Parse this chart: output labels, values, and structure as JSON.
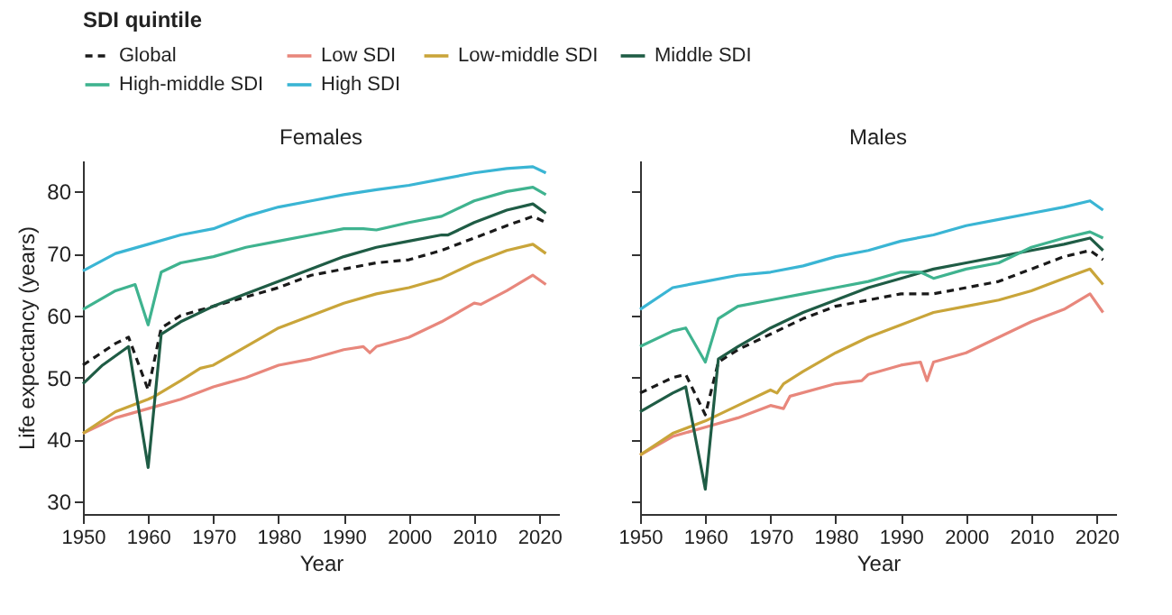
{
  "chart_data": [
    {
      "type": "line",
      "title": "Females",
      "xlabel": "Year",
      "ylabel": "Life expectancy (years)",
      "legend_title": "SDI quintile",
      "legend": "top",
      "xlim": [
        1950,
        2023
      ],
      "xticks": [
        1950,
        1960,
        1970,
        1980,
        1990,
        2000,
        2010,
        2020
      ],
      "ylim": [
        28,
        85
      ],
      "yticks": [
        30,
        40,
        50,
        60,
        70,
        80
      ],
      "series": [
        {
          "name": "Global",
          "color": "#1a1a1a",
          "line_style": "dashed",
          "x": [
            1950,
            1955,
            1957,
            1960,
            1962,
            1965,
            1970,
            1975,
            1980,
            1985,
            1990,
            1995,
            2000,
            2005,
            2010,
            2015,
            2019,
            2021
          ],
          "values": [
            52,
            55.5,
            56.5,
            48,
            58,
            60,
            61.5,
            63,
            64.5,
            66.5,
            67.5,
            68.5,
            69,
            70.5,
            72.5,
            74.5,
            76,
            75
          ]
        },
        {
          "name": "Low SDI",
          "color": "#e8877c",
          "x": [
            1950,
            1955,
            1960,
            1965,
            1970,
            1975,
            1980,
            1985,
            1990,
            1993,
            1994,
            1995,
            2000,
            2005,
            2010,
            2011,
            2015,
            2019,
            2021
          ],
          "values": [
            41,
            43.5,
            45,
            46.5,
            48.5,
            50,
            52,
            53,
            54.5,
            55,
            54,
            55,
            56.5,
            59,
            62,
            61.8,
            64,
            66.5,
            65
          ]
        },
        {
          "name": "Low-middle SDI",
          "color": "#c9a53a",
          "x": [
            1950,
            1955,
            1960,
            1961,
            1965,
            1968,
            1970,
            1975,
            1980,
            1985,
            1990,
            1995,
            2000,
            2005,
            2010,
            2015,
            2019,
            2021
          ],
          "values": [
            41,
            44.5,
            46.5,
            47,
            49.5,
            51.5,
            52,
            55,
            58,
            60,
            62,
            63.5,
            64.5,
            66,
            68.5,
            70.5,
            71.5,
            70
          ]
        },
        {
          "name": "Middle SDI",
          "color": "#1f5c45",
          "x": [
            1950,
            1953,
            1957,
            1960,
            1962,
            1965,
            1970,
            1975,
            1980,
            1985,
            1990,
            1995,
            2000,
            2005,
            2006,
            2010,
            2015,
            2019,
            2021
          ],
          "values": [
            49,
            52,
            55,
            35.5,
            57,
            59,
            61.5,
            63.5,
            65.5,
            67.5,
            69.5,
            71,
            72,
            73,
            73,
            75,
            77,
            78,
            76.5
          ]
        },
        {
          "name": "High-middle SDI",
          "color": "#3fb38f",
          "x": [
            1950,
            1955,
            1958,
            1960,
            1962,
            1965,
            1970,
            1975,
            1980,
            1985,
            1990,
            1993,
            1995,
            2000,
            2005,
            2010,
            2015,
            2019,
            2021
          ],
          "values": [
            61,
            64,
            65,
            58.5,
            67,
            68.5,
            69.5,
            71,
            72,
            73,
            74,
            74,
            73.8,
            75,
            76,
            78.5,
            80,
            80.7,
            79.5
          ]
        },
        {
          "name": "High SDI",
          "color": "#3ab5d4",
          "x": [
            1950,
            1955,
            1960,
            1965,
            1970,
            1975,
            1980,
            1985,
            1990,
            1995,
            2000,
            2005,
            2010,
            2015,
            2019,
            2021
          ],
          "values": [
            67.2,
            70,
            71.5,
            73,
            74,
            76,
            77.5,
            78.5,
            79.5,
            80.3,
            81,
            82,
            83,
            83.7,
            84,
            83
          ]
        }
      ]
    },
    {
      "type": "line",
      "title": "Males",
      "xlabel": "Year",
      "xlim": [
        1950,
        2023
      ],
      "xticks": [
        1950,
        1960,
        1970,
        1980,
        1990,
        2000,
        2010,
        2020
      ],
      "ylim": [
        28,
        85
      ],
      "yticks": [
        30,
        40,
        50,
        60,
        70,
        80
      ],
      "tick_labels": "x",
      "series": [
        {
          "name": "Global",
          "color": "#1a1a1a",
          "line_style": "dashed",
          "x": [
            1950,
            1955,
            1957,
            1960,
            1962,
            1965,
            1970,
            1975,
            1980,
            1985,
            1990,
            1995,
            2000,
            2005,
            2010,
            2015,
            2019,
            2021
          ],
          "values": [
            47.5,
            50,
            50.5,
            44,
            52.5,
            54.5,
            57,
            59.5,
            61.5,
            62.5,
            63.5,
            63.5,
            64.5,
            65.5,
            67.5,
            69.5,
            70.5,
            69
          ]
        },
        {
          "name": "Low SDI",
          "color": "#e8877c",
          "x": [
            1950,
            1955,
            1960,
            1965,
            1970,
            1972,
            1973,
            1980,
            1984,
            1985,
            1990,
            1993,
            1994,
            1995,
            2000,
            2005,
            2010,
            2015,
            2019,
            2021
          ],
          "values": [
            37.5,
            40.5,
            42,
            43.5,
            45.5,
            45,
            47,
            49,
            49.5,
            50.5,
            52,
            52.5,
            49.5,
            52.5,
            54,
            56.5,
            59,
            61,
            63.5,
            60.5
          ]
        },
        {
          "name": "Low-middle SDI",
          "color": "#c9a53a",
          "x": [
            1950,
            1955,
            1960,
            1965,
            1970,
            1971,
            1972,
            1975,
            1980,
            1985,
            1990,
            1995,
            2000,
            2005,
            2010,
            2015,
            2019,
            2021
          ],
          "values": [
            37.5,
            41,
            43,
            45.5,
            48,
            47.5,
            49,
            51,
            54,
            56.5,
            58.5,
            60.5,
            61.5,
            62.5,
            64,
            66,
            67.5,
            65
          ]
        },
        {
          "name": "Middle SDI",
          "color": "#1f5c45",
          "x": [
            1950,
            1955,
            1957,
            1960,
            1962,
            1965,
            1970,
            1975,
            1980,
            1985,
            1990,
            1995,
            2000,
            2005,
            2010,
            2015,
            2019,
            2021
          ],
          "values": [
            44.5,
            47.5,
            48.5,
            32,
            53,
            55,
            58,
            60.5,
            62.5,
            64.5,
            66,
            67.5,
            68.5,
            69.5,
            70.5,
            71.5,
            72.5,
            70.5
          ]
        },
        {
          "name": "High-middle SDI",
          "color": "#3fb38f",
          "x": [
            1950,
            1955,
            1957,
            1960,
            1962,
            1965,
            1970,
            1975,
            1980,
            1985,
            1990,
            1993,
            1995,
            2000,
            2005,
            2010,
            2015,
            2019,
            2021
          ],
          "values": [
            55,
            57.5,
            58,
            52.5,
            59.5,
            61.5,
            62.5,
            63.5,
            64.5,
            65.5,
            67,
            67,
            66,
            67.5,
            68.5,
            71,
            72.5,
            73.5,
            72.5
          ]
        },
        {
          "name": "High SDI",
          "color": "#3ab5d4",
          "x": [
            1950,
            1955,
            1960,
            1965,
            1970,
            1975,
            1980,
            1985,
            1990,
            1995,
            2000,
            2005,
            2010,
            2015,
            2019,
            2021
          ],
          "values": [
            61,
            64.5,
            65.5,
            66.5,
            67,
            68,
            69.5,
            70.5,
            72,
            73,
            74.5,
            75.5,
            76.5,
            77.5,
            78.5,
            77
          ]
        }
      ]
    }
  ]
}
